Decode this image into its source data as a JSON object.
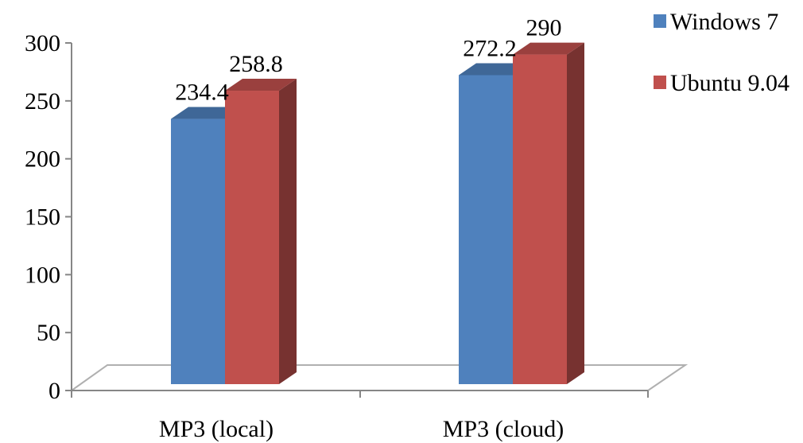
{
  "chart_data": {
    "type": "bar",
    "categories": [
      "MP3 (local)",
      "MP3 (cloud)"
    ],
    "series": [
      {
        "name": "Windows 7",
        "values": [
          234.4,
          272.2
        ]
      },
      {
        "name": "Ubuntu 9.04",
        "values": [
          258.8,
          290
        ]
      }
    ],
    "value_labels": [
      [
        "234.4",
        "272.2"
      ],
      [
        "258.8",
        "290"
      ]
    ],
    "yticks": [
      "0",
      "50",
      "100",
      "150",
      "200",
      "250",
      "300"
    ],
    "ylim": [
      0,
      300
    ],
    "title": "",
    "xlabel": "",
    "ylabel": "",
    "legend_position": "top-right",
    "grid": false,
    "style": "3d-column",
    "colors": {
      "Windows 7": "#4F81BD",
      "Ubuntu 9.04": "#C0504D"
    }
  }
}
